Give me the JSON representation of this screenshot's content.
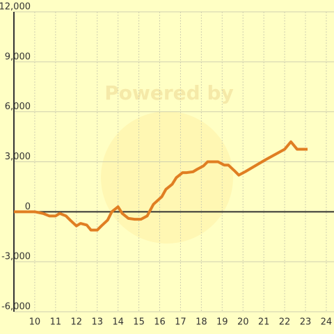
{
  "chart_data": {
    "type": "line",
    "watermark": "Powered by",
    "x": [
      9.0,
      10.0,
      10.4,
      10.7,
      11.0,
      11.2,
      11.5,
      11.7,
      12.0,
      12.2,
      12.5,
      12.7,
      13.0,
      13.2,
      13.5,
      13.7,
      14.0,
      14.2,
      14.5,
      14.8,
      15.1,
      15.4,
      15.7,
      16.1,
      16.3,
      16.6,
      16.8,
      17.1,
      17.3,
      17.6,
      17.8,
      18.1,
      18.3,
      18.6,
      18.8,
      19.1,
      19.3,
      19.6,
      19.8,
      20.1,
      21.05,
      22.0,
      22.3,
      22.6,
      23.1
    ],
    "series": [
      {
        "color": "#e07e22",
        "values": [
          0,
          0,
          -100,
          -250,
          -250,
          -100,
          -250,
          -500,
          -850,
          -700,
          -800,
          -1100,
          -1100,
          -850,
          -500,
          0,
          300,
          -100,
          -400,
          -450,
          -450,
          -250,
          450,
          900,
          1350,
          1650,
          2050,
          2350,
          2350,
          2400,
          2550,
          2750,
          3000,
          3000,
          3000,
          2800,
          2800,
          2450,
          2200,
          2400,
          3100,
          3750,
          4200,
          3750,
          3750
        ]
      }
    ],
    "xlim": [
      9,
      24.37
    ],
    "xticks": [
      10,
      11,
      12,
      13,
      14,
      15,
      16,
      17,
      18,
      19,
      20,
      21,
      22,
      23,
      24
    ],
    "ylim": [
      -6000,
      12000
    ],
    "yticks": [
      {
        "value": -6000,
        "label": "-6,000"
      },
      {
        "value": -3000,
        "label": "-3,000"
      },
      0,
      {
        "value": 3000,
        "label": "3,000"
      },
      {
        "value": 6000,
        "label": "6,000"
      },
      {
        "value": 9000,
        "label": "9,000"
      },
      {
        "value": 12000,
        "label": "12,000"
      }
    ],
    "grid": true
  }
}
